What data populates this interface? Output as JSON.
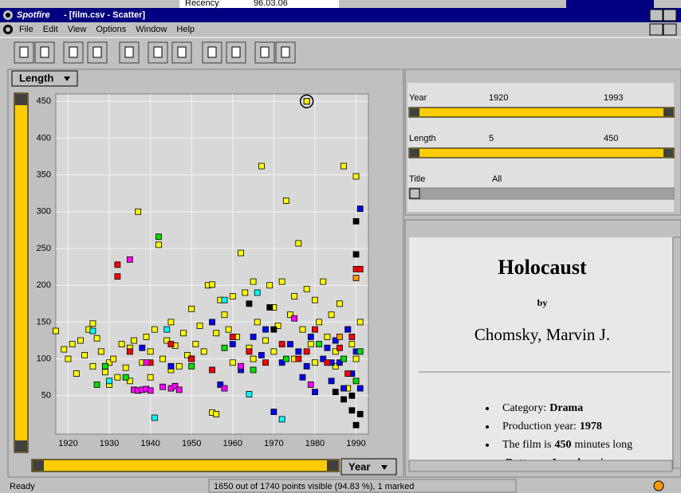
{
  "background": [
    "Recency",
    "96.03.06"
  ],
  "window": {
    "app": "Spotfire",
    "doc": "- [film.csv - Scatter]"
  },
  "menu": [
    "File",
    "Edit",
    "View",
    "Options",
    "Window",
    "Help"
  ],
  "chart_data": {
    "type": "scatter",
    "x_label": "Year",
    "y_label": "Length",
    "xlim": [
      1917,
      1993
    ],
    "ylim": [
      0,
      460
    ],
    "xticks": [
      1920,
      1930,
      1940,
      1950,
      1960,
      1970,
      1980,
      1990
    ],
    "yticks": [
      50,
      100,
      150,
      200,
      250,
      300,
      350,
      400,
      450
    ],
    "grid": true,
    "marked": {
      "x": 1978,
      "y": 450
    },
    "series": [
      {
        "color": "#ffff00",
        "x": [
          1917,
          1919,
          1920,
          1921,
          1922,
          1923,
          1924,
          1925,
          1926,
          1926,
          1927,
          1928,
          1929,
          1930,
          1931,
          1932,
          1933,
          1934,
          1935,
          1936,
          1937,
          1938,
          1939,
          1940,
          1941,
          1942,
          1943,
          1944,
          1945,
          1946,
          1947,
          1948,
          1949,
          1950,
          1951,
          1952,
          1953,
          1954,
          1955,
          1955,
          1956,
          1956,
          1957,
          1958,
          1959,
          1960,
          1961,
          1962,
          1963,
          1964,
          1965,
          1966,
          1967,
          1968,
          1969,
          1970,
          1971,
          1972,
          1973,
          1974,
          1975,
          1976,
          1977,
          1978,
          1979,
          1980,
          1981,
          1982,
          1983,
          1984,
          1985,
          1986,
          1987,
          1988,
          1989,
          1990,
          1990,
          1991,
          1960,
          1965,
          1970,
          1975,
          1980,
          1985,
          1950,
          1945,
          1935,
          1930,
          1940,
          1988
        ],
        "values": [
          138,
          113,
          100,
          120,
          80,
          125,
          105,
          140,
          148,
          90,
          128,
          110,
          82,
          95,
          100,
          75,
          120,
          88,
          115,
          125,
          300,
          95,
          130,
          110,
          140,
          255,
          100,
          125,
          150,
          118,
          90,
          135,
          105,
          168,
          120,
          145,
          110,
          200,
          201,
          27,
          25,
          135,
          180,
          160,
          140,
          185,
          130,
          244,
          190,
          115,
          205,
          150,
          362,
          125,
          200,
          170,
          145,
          205,
          315,
          160,
          185,
          257,
          140,
          195,
          120,
          180,
          150,
          205,
          130,
          160,
          110,
          175,
          362,
          140,
          120,
          348,
          100,
          150,
          95,
          100,
          110,
          100,
          95,
          90,
          100,
          85,
          70,
          65,
          75,
          60
        ]
      },
      {
        "color": "#0000ff",
        "x": [
          1938,
          1945,
          1950,
          1955,
          1957,
          1960,
          1962,
          1965,
          1967,
          1968,
          1970,
          1972,
          1974,
          1976,
          1978,
          1979,
          1980,
          1982,
          1983,
          1984,
          1985,
          1986,
          1987,
          1988,
          1989,
          1990,
          1991,
          1991,
          1984,
          1977
        ],
        "values": [
          115,
          90,
          100,
          150,
          65,
          120,
          85,
          130,
          105,
          140,
          28,
          95,
          120,
          110,
          90,
          130,
          55,
          100,
          115,
          70,
          125,
          95,
          60,
          140,
          80,
          110,
          304,
          60,
          95,
          75
        ]
      },
      {
        "color": "#ff0000",
        "x": [
          1932,
          1932,
          1935,
          1940,
          1945,
          1950,
          1955,
          1960,
          1964,
          1968,
          1972,
          1976,
          1980,
          1983,
          1986,
          1989,
          1990,
          1991,
          1988,
          1978
        ],
        "values": [
          228,
          212,
          110,
          95,
          120,
          100,
          85,
          130,
          110,
          95,
          120,
          100,
          140,
          95,
          115,
          130,
          222,
          222,
          80,
          110
        ]
      },
      {
        "color": "#00dd00",
        "x": [
          1927,
          1929,
          1934,
          1942,
          1950,
          1958,
          1965,
          1973,
          1981,
          1987,
          1990,
          1991
        ],
        "values": [
          65,
          90,
          75,
          266,
          90,
          115,
          85,
          100,
          120,
          100,
          70,
          110
        ]
      },
      {
        "color": "#ff00ff",
        "x": [
          1935,
          1936,
          1937,
          1938,
          1939,
          1940,
          1943,
          1945,
          1946,
          1947,
          1958,
          1962,
          1975,
          1979,
          1939
        ],
        "values": [
          235,
          58,
          57,
          58,
          59,
          57,
          62,
          60,
          63,
          58,
          60,
          90,
          155,
          65,
          95
        ]
      },
      {
        "color": "#00ffff",
        "x": [
          1926,
          1941,
          1944,
          1958,
          1964,
          1972,
          1966,
          1930
        ],
        "values": [
          138,
          20,
          140,
          180,
          52,
          18,
          190,
          70
        ]
      },
      {
        "color": "#000000",
        "x": [
          1964,
          1969,
          1985,
          1989,
          1990,
          1990,
          1989,
          1990,
          1987,
          1991,
          1970
        ],
        "values": [
          175,
          170,
          55,
          50,
          287,
          242,
          30,
          10,
          45,
          25,
          140
        ]
      },
      {
        "color": "#ff9900",
        "x": [
          1990,
          1986
        ],
        "values": [
          210,
          130
        ]
      }
    ]
  },
  "query_devices": [
    {
      "label": "Year",
      "min": 1920,
      "max": 1993
    },
    {
      "label": "Length",
      "min": 5,
      "max": 450
    },
    {
      "label": "Title",
      "value": "All"
    }
  ],
  "details": {
    "title": "Holocaust",
    "by": "by",
    "director": "Chomsky, Marvin J.",
    "bullets": [
      {
        "pre": "Category:",
        "bold": "Drama",
        "post": ""
      },
      {
        "pre": "Production year:",
        "bold": "1978",
        "post": ""
      },
      {
        "pre": "The film is",
        "bold": "450",
        "post": "minutes long"
      },
      {
        "pre": "",
        "bold": "Bottoms, Joseph",
        "post": "makes a"
      }
    ]
  },
  "status": {
    "left": "Ready",
    "center": "1650 out of 1740 points visible (94.83 %), 1 marked"
  }
}
